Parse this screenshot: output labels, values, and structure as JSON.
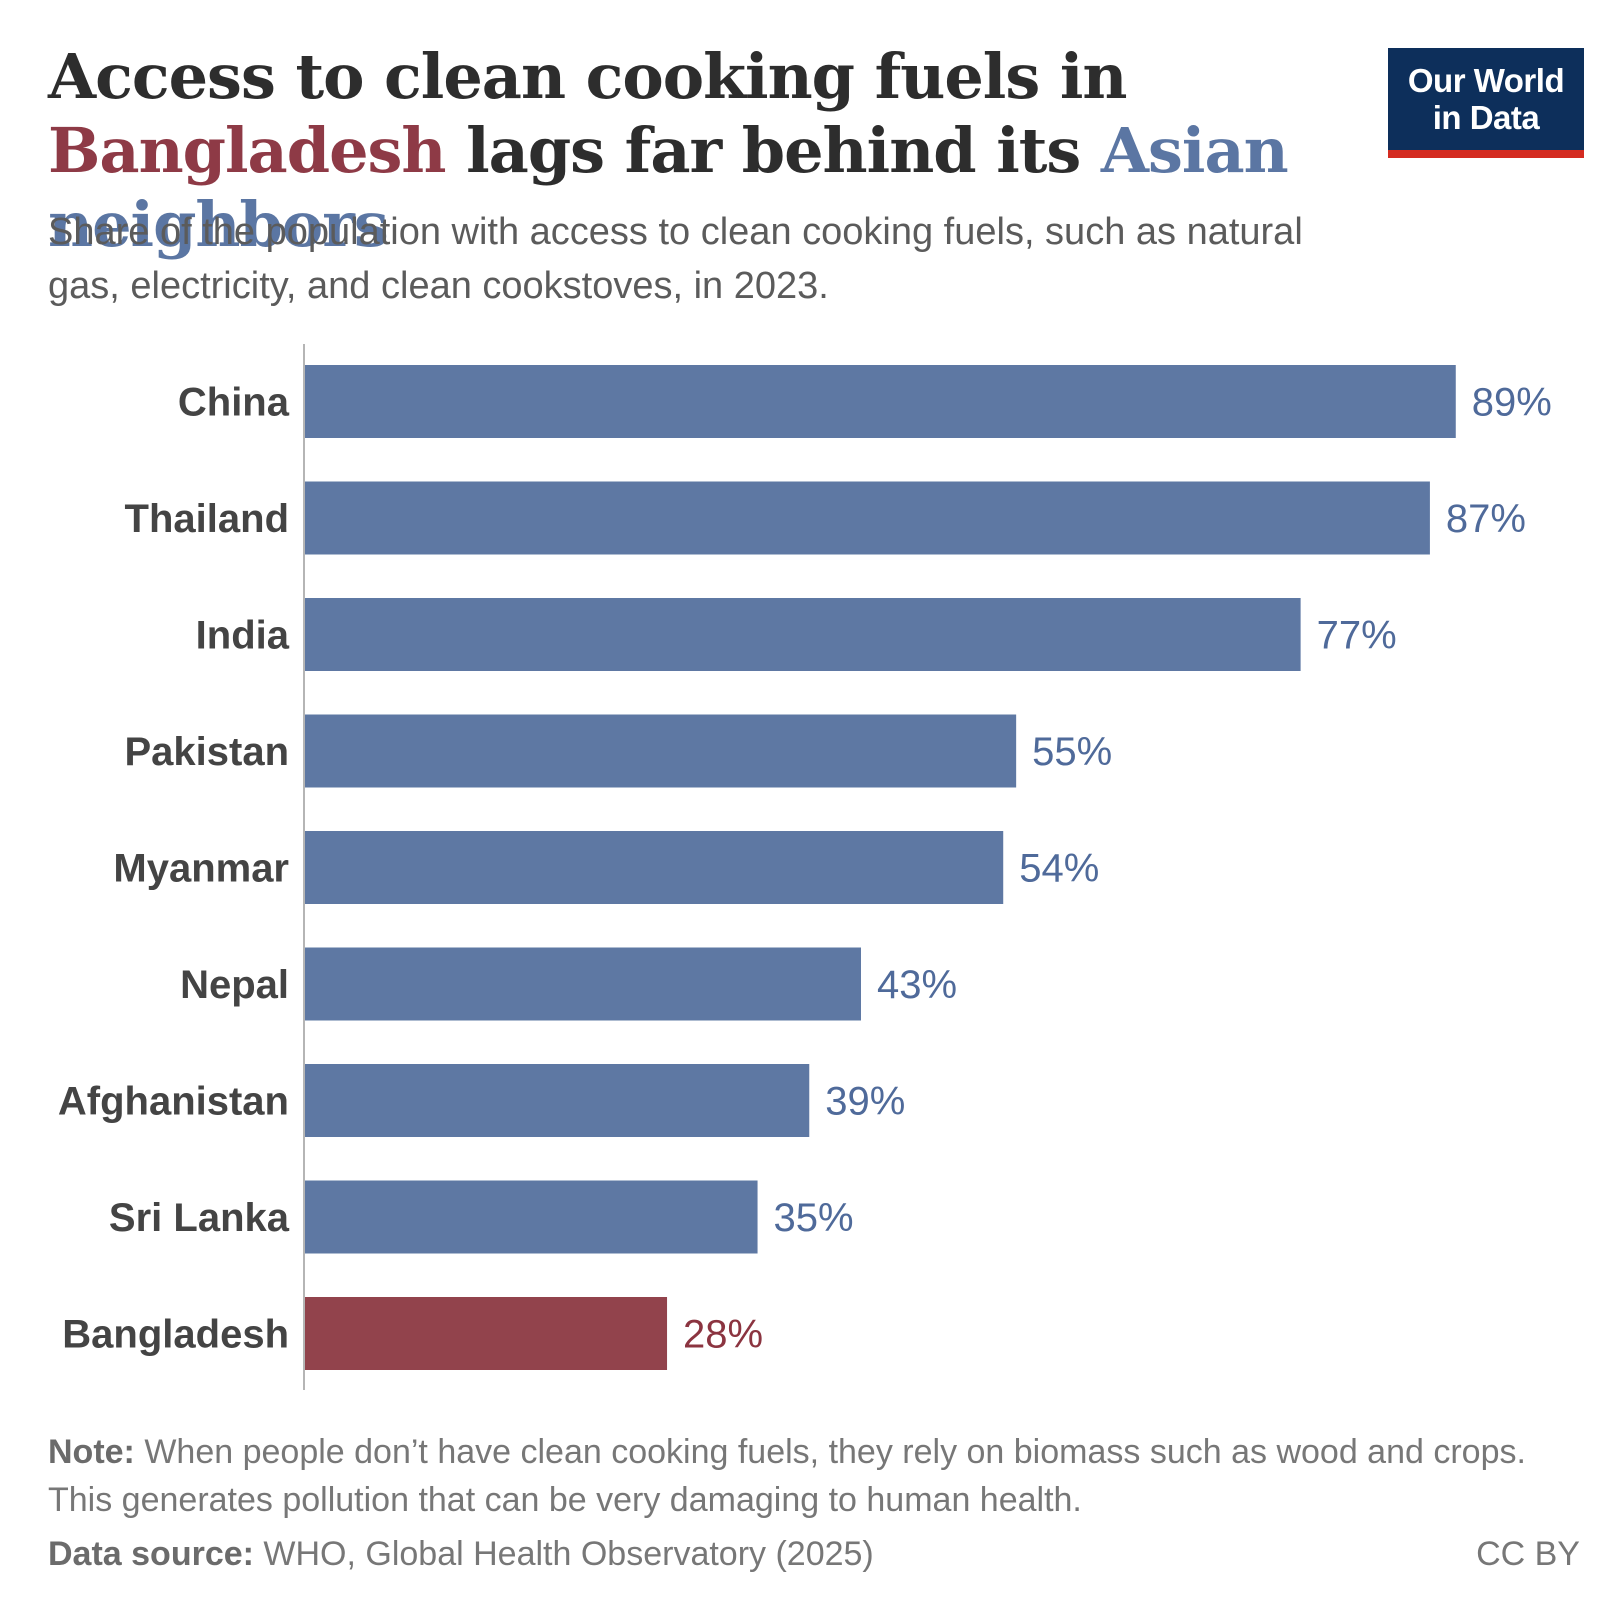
{
  "header": {
    "title_part1": "Access to clean cooking fuels in ",
    "title_highlight1": "Bangladesh",
    "title_part2": " lags far behind its ",
    "title_highlight2": "Asian neighbors",
    "subtitle": "Share of the population with access to clean cooking fuels, such as natural gas, electricity, and clean cookstoves, in 2023.",
    "logo_line1": "Our World",
    "logo_line2": "in Data"
  },
  "colors": {
    "neighbor": "#5e78a3",
    "neighbor_label": "#4f6a9a",
    "highlight": "#92434c",
    "highlight_label": "#8b3440",
    "logo_bg": "#0d2f5b",
    "logo_bar": "#d42b21"
  },
  "chart_data": {
    "type": "bar",
    "orientation": "horizontal",
    "categories": [
      "China",
      "Thailand",
      "India",
      "Pakistan",
      "Myanmar",
      "Nepal",
      "Afghanistan",
      "Sri Lanka",
      "Bangladesh"
    ],
    "values": [
      89,
      87,
      77,
      55,
      54,
      43,
      39,
      35,
      28
    ],
    "value_labels": [
      "89%",
      "87%",
      "77%",
      "55%",
      "54%",
      "43%",
      "39%",
      "35%",
      "28%"
    ],
    "highlight": [
      "Bangladesh"
    ],
    "unit": "%",
    "xlim": [
      0,
      100
    ],
    "grid": false
  },
  "footer": {
    "note_label": "Note:",
    "note_text": " When people don’t have clean cooking fuels, they rely on biomass such as wood and crops. This generates pollution that can be very damaging to human health.",
    "source_label": "Data source:",
    "source_text": " WHO, Global Health Observatory (2025)",
    "license": "CC BY"
  }
}
